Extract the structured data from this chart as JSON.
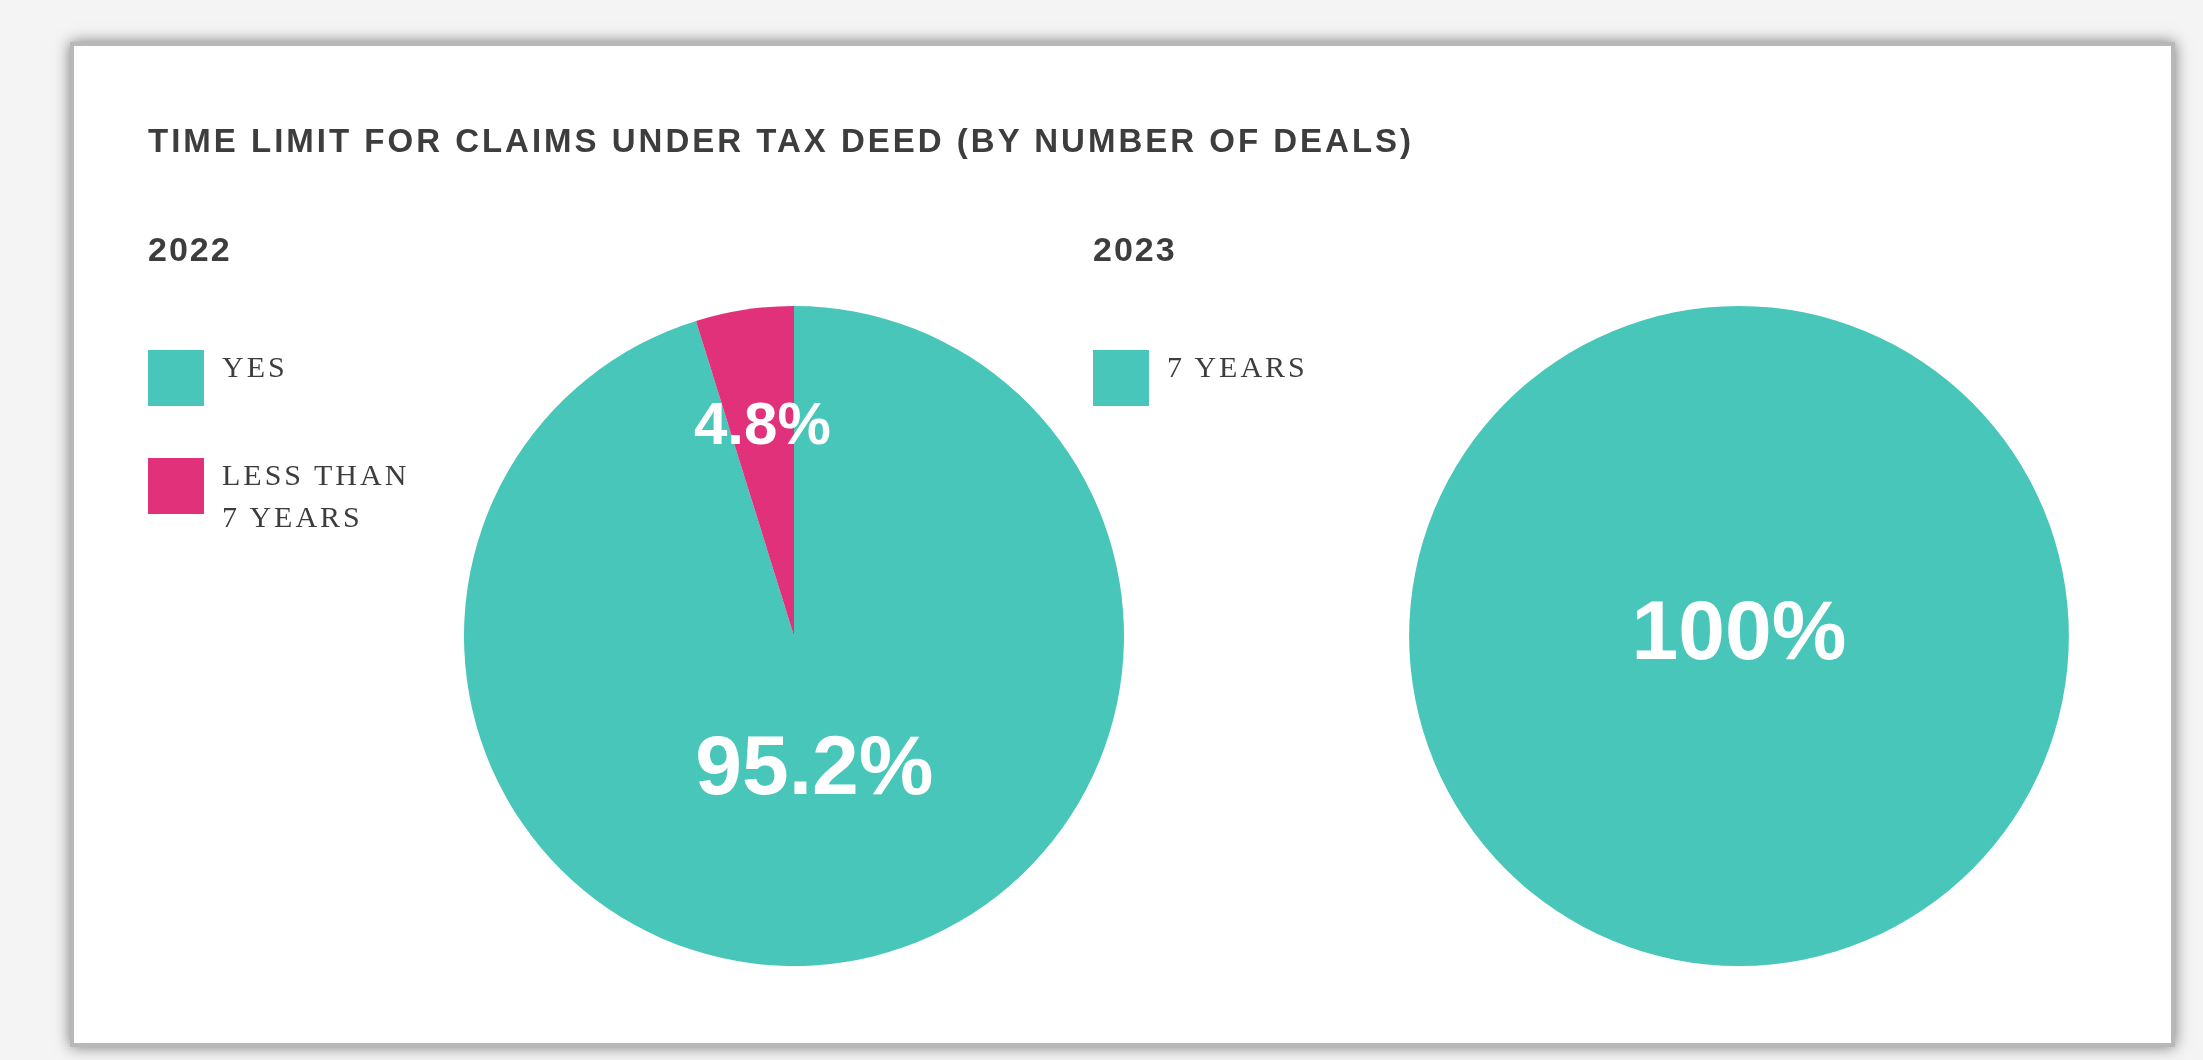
{
  "chart_data": [
    {
      "type": "pie",
      "title": "TIME LIMIT FOR CLAIMS UNDER TAX DEED (BY NUMBER OF DEALS)",
      "subtitle": "2022",
      "categories": [
        "YES",
        "LESS THAN 7 YEARS"
      ],
      "values": [
        95.2,
        4.8
      ],
      "colors": [
        "#48c6b9",
        "#e0317a"
      ],
      "value_labels": [
        "95.2%",
        "4.8%"
      ],
      "legend": "left"
    },
    {
      "type": "pie",
      "subtitle": "2023",
      "categories": [
        "7 YEARS"
      ],
      "values": [
        100
      ],
      "colors": [
        "#48c6b9"
      ],
      "value_labels": [
        "100%"
      ],
      "legend": "left"
    }
  ]
}
